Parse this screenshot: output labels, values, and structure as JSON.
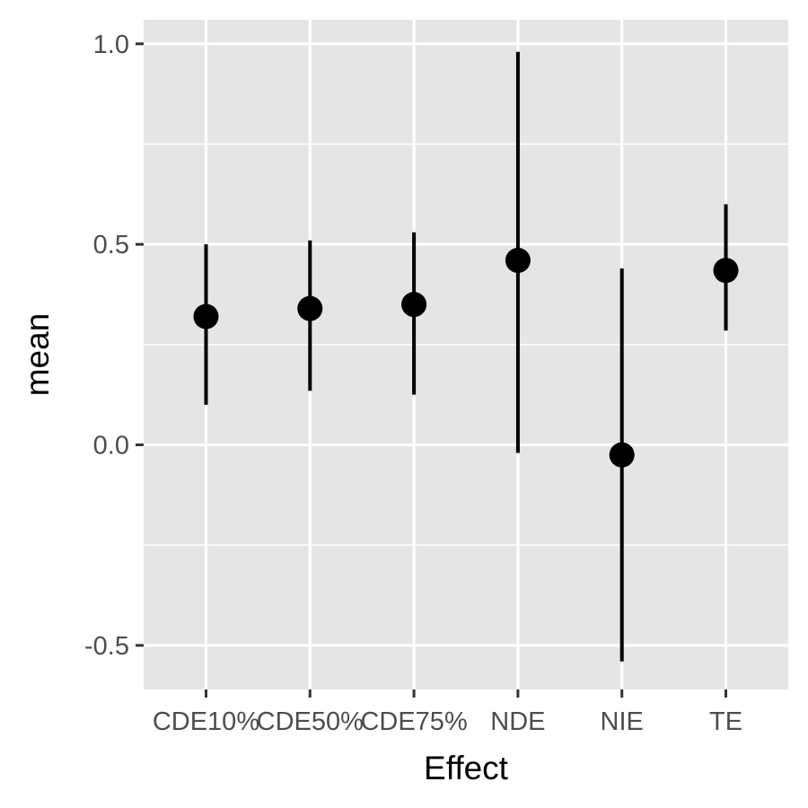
{
  "chart_data": {
    "type": "scatter",
    "subtype": "pointrange",
    "title": "",
    "xlabel": "Effect",
    "ylabel": "mean",
    "categories": [
      "CDE10%",
      "CDE50%",
      "CDE75%",
      "NDE",
      "NIE",
      "TE"
    ],
    "series": [
      {
        "values": [
          0.32,
          0.34,
          0.35,
          0.46,
          -0.025,
          0.435
        ],
        "lower": [
          0.1,
          0.135,
          0.125,
          -0.02,
          -0.54,
          0.285
        ],
        "upper": [
          0.5,
          0.51,
          0.53,
          0.98,
          0.44,
          0.6
        ]
      }
    ],
    "ylim": [
      -0.61,
      1.06
    ],
    "yticks": [
      -0.5,
      0.0,
      0.5,
      1.0
    ],
    "ytick_labels": [
      "-0.5",
      "0.0",
      "0.5",
      "1.0"
    ],
    "grid": true,
    "legend": "none",
    "colors": {
      "panel_background": "#e5e5e5",
      "grid": "#ffffff",
      "mark": "#000000",
      "tick_text": "#4d4d4d"
    }
  }
}
